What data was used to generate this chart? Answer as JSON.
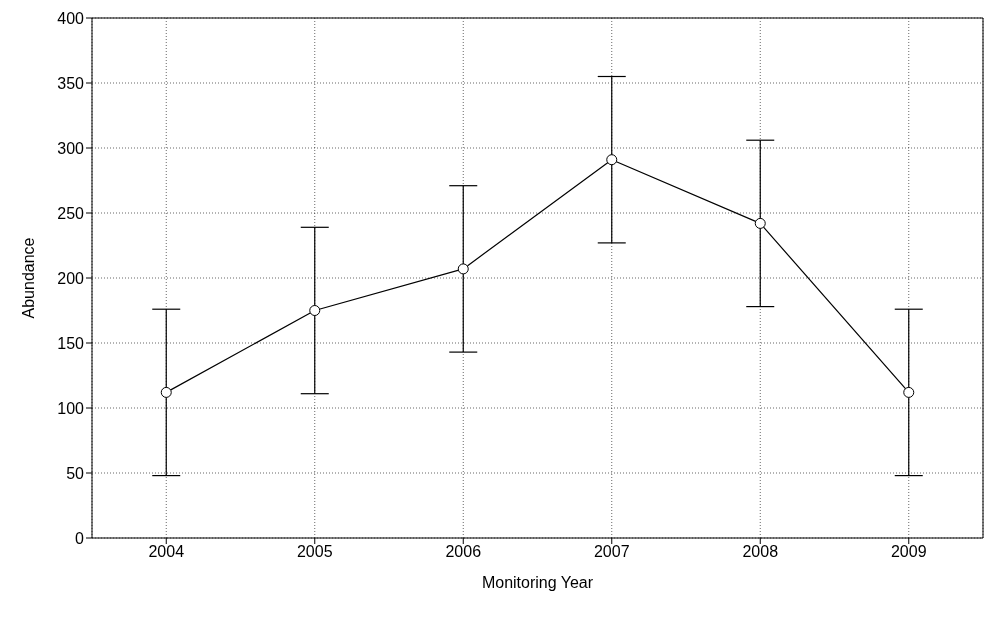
{
  "chart_data": {
    "type": "line",
    "xlabel": "Monitoring Year",
    "ylabel": "Abundance",
    "x": [
      2004,
      2005,
      2006,
      2007,
      2008,
      2009
    ],
    "series": [
      {
        "color": "#000000",
        "values": [
          112,
          175,
          207,
          291,
          242,
          112
        ],
        "errors": [
          64,
          64,
          64,
          64,
          64,
          64
        ]
      }
    ],
    "xlim": [
      2003.5,
      2009.5
    ],
    "xticks": [
      2004,
      2005,
      2006,
      2007,
      2008,
      2009
    ],
    "ylim": [
      0,
      400
    ],
    "yticks": [
      0,
      50,
      100,
      150,
      200,
      250,
      300,
      350,
      400
    ],
    "grid": true,
    "marker": "circle",
    "line_style": "solid"
  }
}
